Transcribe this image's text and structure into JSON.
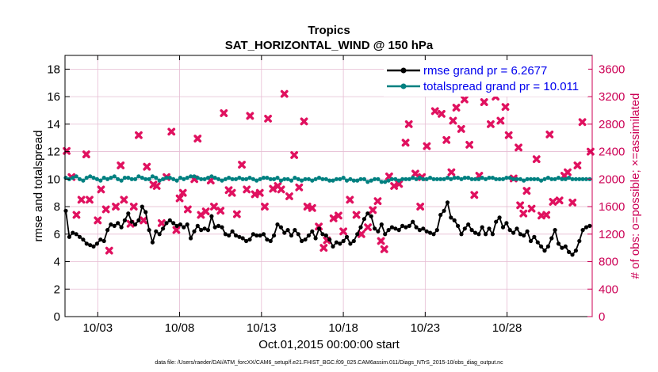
{
  "chart_data": {
    "type": "line",
    "title": "Tropics",
    "subtitle": "SAT_HORIZONTAL_WIND @ 150 hPa",
    "xlabel": "Oct.01,2015 00:00:00 start",
    "ylabel": "rmse and totalspread",
    "y2label": "# of obs: o=possible; ×=assimilated",
    "footer": "data file: /Users/raeder/DAI/ATM_forcXX/CAM6_setup/f.e21.FHIST_BGC.f09_025.CAM6assim.011/Diags_NTrS_2015-10/obs_diag_output.nc",
    "xlim": [
      1.0,
      33.2
    ],
    "ylim": [
      0,
      19
    ],
    "y2lim": [
      0,
      3800
    ],
    "x_ticks": [
      {
        "x": 3,
        "label": "10/03"
      },
      {
        "x": 8,
        "label": "10/08"
      },
      {
        "x": 13,
        "label": "10/13"
      },
      {
        "x": 18,
        "label": "10/18"
      },
      {
        "x": 23,
        "label": "10/23"
      },
      {
        "x": 28,
        "label": "10/28"
      }
    ],
    "y_ticks": [
      "0",
      "2",
      "4",
      "6",
      "8",
      "10",
      "12",
      "14",
      "16",
      "18"
    ],
    "y2_ticks": [
      "0",
      "400",
      "800",
      "1200",
      "1600",
      "2000",
      "2400",
      "2800",
      "3200",
      "3600"
    ],
    "colors": {
      "rmse": "#000000",
      "spread": "#008080",
      "obs": "#e0115f",
      "grid": "#e6bcd2",
      "right_axis": "#cc0055"
    },
    "legend": [
      {
        "label": "rmse grand pr = 6.2677",
        "color": "#000000"
      },
      {
        "label": "totalspread grand pr = 10.011",
        "color": "#008080"
      }
    ],
    "series": [
      {
        "name": "rmse",
        "color": "#000000",
        "values": [
          7.7,
          5.8,
          6.1,
          6.0,
          5.8,
          5.6,
          5.3,
          5.2,
          5.1,
          5.3,
          5.6,
          5.5,
          6.3,
          6.7,
          6.6,
          6.8,
          6.5,
          7.0,
          7.5,
          6.9,
          6.7,
          7.0,
          8.0,
          7.6,
          6.3,
          5.4,
          6.2,
          6.0,
          6.4,
          6.8,
          7.0,
          6.8,
          6.6,
          6.7,
          6.5,
          6.7,
          5.7,
          6.2,
          6.6,
          6.3,
          6.4,
          6.3,
          7.3,
          6.5,
          6.6,
          6.5,
          6.0,
          5.9,
          6.2,
          5.9,
          5.8,
          5.7,
          5.5,
          5.6,
          6.0,
          5.9,
          5.9,
          6.0,
          5.6,
          5.5,
          5.9,
          6.7,
          6.5,
          6.1,
          6.3,
          5.9,
          6.3,
          6.0,
          5.5,
          5.6,
          5.9,
          6.2,
          5.7,
          6.4,
          6.0,
          5.9,
          5.6,
          5.1,
          5.4,
          5.3,
          5.5,
          5.8,
          5.3,
          5.5,
          6.0,
          6.5,
          7.1,
          7.5,
          7.3,
          6.4,
          6.2,
          6.7,
          6.0,
          6.3,
          6.5,
          6.4,
          6.3,
          6.6,
          6.5,
          6.6,
          6.9,
          6.5,
          6.3,
          6.4,
          6.2,
          6.1,
          6.0,
          6.3,
          7.4,
          7.7,
          8.3,
          7.2,
          7.0,
          6.6,
          6.0,
          6.4,
          6.7,
          6.3,
          6.1,
          6.0,
          6.5,
          6.0,
          6.4,
          6.0,
          6.9,
          7.2,
          6.5,
          6.8,
          6.3,
          6.1,
          6.4,
          6.0,
          5.9,
          6.2,
          5.5,
          5.8,
          5.4,
          5.1,
          4.8,
          5.1,
          5.7,
          6.3,
          5.3,
          5.0,
          5.1,
          4.7,
          4.5,
          4.8,
          5.5,
          6.3,
          6.5,
          6.6
        ]
      },
      {
        "name": "totalspread",
        "color": "#008080",
        "values": [
          10.1,
          10.0,
          10.1,
          10.2,
          10.0,
          9.9,
          10.1,
          10.2,
          10.1,
          10.0,
          9.9,
          10.1,
          10.0,
          10.1,
          10.2,
          10.0,
          9.9,
          10.1,
          10.1,
          10.0,
          10.0,
          10.2,
          10.1,
          10.0,
          10.0,
          10.2,
          10.1,
          9.9,
          10.0,
          10.1,
          10.1,
          10.0,
          9.9,
          10.1,
          10.0,
          10.1,
          10.2,
          10.2,
          10.1,
          10.0,
          10.0,
          10.1,
          10.2,
          10.1,
          10.0,
          9.9,
          10.0,
          10.1,
          10.0,
          10.0,
          10.1,
          10.0,
          10.0,
          10.1,
          10.0,
          9.9,
          10.0,
          10.1,
          10.1,
          10.0,
          10.0,
          10.1,
          9.9,
          10.0,
          10.0,
          9.9,
          10.1,
          10.0,
          9.9,
          10.0,
          10.0,
          9.9,
          10.0,
          10.1,
          10.0,
          10.0,
          9.9,
          9.9,
          10.0,
          10.0,
          10.1,
          9.9,
          10.0,
          9.9,
          9.9,
          10.0,
          10.0,
          9.8,
          9.9,
          10.0,
          10.0,
          9.8,
          9.8,
          9.9,
          10.0,
          10.0,
          9.9,
          10.0,
          10.0,
          10.0,
          10.1,
          10.0,
          10.1,
          10.0,
          10.0,
          10.1,
          10.0,
          10.0,
          10.0,
          10.0,
          10.1,
          10.0,
          10.1,
          10.1,
          10.0,
          10.1,
          10.1,
          10.0,
          10.0,
          10.0,
          10.1,
          10.0,
          10.1,
          10.1,
          10.0,
          10.0,
          10.0,
          10.1,
          10.1,
          10.0,
          10.0,
          10.0,
          9.9,
          10.0,
          10.0,
          10.0,
          10.0,
          9.9,
          10.0,
          10.1,
          10.0,
          10.0,
          10.1,
          10.0,
          10.0,
          10.1,
          10.0,
          10.0,
          10.0,
          10.0,
          10.0,
          10.0
        ]
      },
      {
        "name": "obs_count",
        "color": "#e0115f",
        "marker": "x",
        "points": [
          [
            1.1,
            2410
          ],
          [
            1.4,
            2030
          ],
          [
            1.7,
            1480
          ],
          [
            2.0,
            1700
          ],
          [
            2.3,
            2360
          ],
          [
            2.5,
            1700
          ],
          [
            3.0,
            1400
          ],
          [
            3.2,
            1850
          ],
          [
            3.5,
            1560
          ],
          [
            3.7,
            960
          ],
          [
            4.1,
            1600
          ],
          [
            4.4,
            2200
          ],
          [
            4.6,
            1700
          ],
          [
            5.0,
            1350
          ],
          [
            5.2,
            1600
          ],
          [
            5.5,
            2640
          ],
          [
            5.8,
            1400
          ],
          [
            6.0,
            2180
          ],
          [
            6.4,
            1920
          ],
          [
            6.6,
            1900
          ],
          [
            6.9,
            1360
          ],
          [
            7.2,
            2030
          ],
          [
            7.5,
            2690
          ],
          [
            7.8,
            1260
          ],
          [
            8.0,
            1720
          ],
          [
            8.2,
            1800
          ],
          [
            8.5,
            1560
          ],
          [
            8.9,
            2000
          ],
          [
            9.1,
            2590
          ],
          [
            9.3,
            1480
          ],
          [
            9.6,
            1530
          ],
          [
            9.9,
            1980
          ],
          [
            10.1,
            1600
          ],
          [
            10.5,
            1540
          ],
          [
            10.7,
            2960
          ],
          [
            11.0,
            1840
          ],
          [
            11.2,
            1800
          ],
          [
            11.5,
            1490
          ],
          [
            11.8,
            2210
          ],
          [
            12.1,
            1850
          ],
          [
            12.3,
            2920
          ],
          [
            12.6,
            1780
          ],
          [
            12.9,
            1800
          ],
          [
            13.2,
            1600
          ],
          [
            13.4,
            2880
          ],
          [
            13.7,
            1860
          ],
          [
            14.0,
            1900
          ],
          [
            14.2,
            1850
          ],
          [
            14.4,
            3240
          ],
          [
            14.7,
            1750
          ],
          [
            15.0,
            2350
          ],
          [
            15.3,
            1880
          ],
          [
            15.6,
            2840
          ],
          [
            15.8,
            1600
          ],
          [
            16.1,
            1580
          ],
          [
            16.5,
            1310
          ],
          [
            16.8,
            1000
          ],
          [
            17.0,
            1110
          ],
          [
            17.4,
            1430
          ],
          [
            17.7,
            1470
          ],
          [
            18.0,
            1240
          ],
          [
            18.4,
            1700
          ],
          [
            18.8,
            1480
          ],
          [
            19.1,
            1200
          ],
          [
            19.5,
            1300
          ],
          [
            19.8,
            1550
          ],
          [
            20.1,
            1680
          ],
          [
            20.3,
            1100
          ],
          [
            20.5,
            980
          ],
          [
            20.8,
            2040
          ],
          [
            21.1,
            1900
          ],
          [
            21.4,
            1930
          ],
          [
            21.8,
            2530
          ],
          [
            22.0,
            2800
          ],
          [
            22.4,
            2080
          ],
          [
            22.7,
            1600
          ],
          [
            22.8,
            2030
          ],
          [
            23.1,
            2480
          ],
          [
            23.6,
            2990
          ],
          [
            24.0,
            2950
          ],
          [
            24.3,
            2570
          ],
          [
            24.6,
            2100
          ],
          [
            24.7,
            2850
          ],
          [
            24.9,
            3040
          ],
          [
            25.2,
            2730
          ],
          [
            25.4,
            3160
          ],
          [
            25.7,
            2500
          ],
          [
            26.0,
            1770
          ],
          [
            26.3,
            2050
          ],
          [
            26.6,
            3120
          ],
          [
            26.8,
            3270
          ],
          [
            27.0,
            2800
          ],
          [
            27.3,
            3200
          ],
          [
            27.6,
            2850
          ],
          [
            27.9,
            3050
          ],
          [
            28.1,
            2640
          ],
          [
            28.4,
            2010
          ],
          [
            28.7,
            2460
          ],
          [
            28.8,
            1620
          ],
          [
            29.0,
            1500
          ],
          [
            29.2,
            1830
          ],
          [
            29.5,
            1570
          ],
          [
            29.8,
            2290
          ],
          [
            30.1,
            1470
          ],
          [
            30.4,
            1480
          ],
          [
            30.6,
            2650
          ],
          [
            30.8,
            1670
          ],
          [
            31.2,
            1690
          ],
          [
            31.5,
            2050
          ],
          [
            31.7,
            2100
          ],
          [
            32.0,
            1660
          ],
          [
            32.3,
            2200
          ],
          [
            32.6,
            2830
          ],
          [
            33.1,
            2400
          ]
        ]
      }
    ]
  }
}
